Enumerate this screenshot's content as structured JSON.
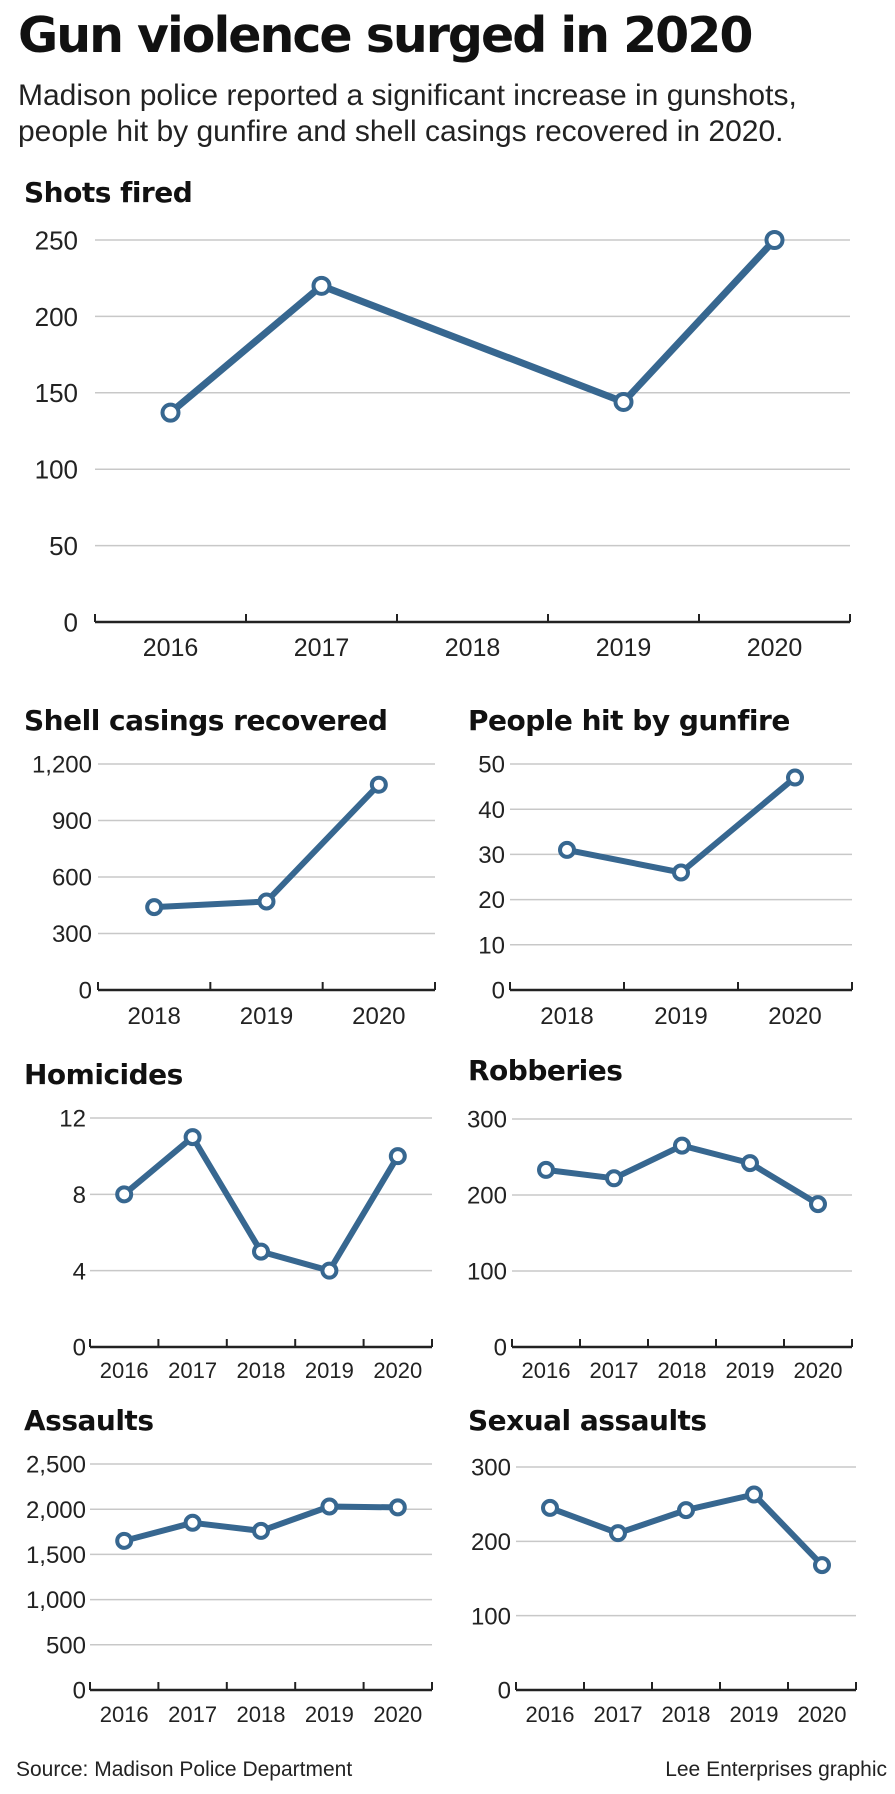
{
  "headline": "Gun violence surged in 2020",
  "subhead": "Madison police reported a significant increase in gunshots, people hit by gunfire and shell casings recovered in 2020.",
  "footer": {
    "source": "Source: Madison Police Department",
    "credit": "Lee Enterprises graphic"
  },
  "colors": {
    "line": "#376790",
    "grid": "#c8c8c8",
    "axis": "#222222"
  },
  "chart_data": [
    {
      "type": "line",
      "title": "Shots fired",
      "categories": [
        "2016",
        "2017",
        "2018",
        "2019",
        "2020"
      ],
      "values": [
        137,
        220,
        null,
        144,
        250
      ],
      "ylim": [
        0,
        250
      ],
      "yticks": [
        "0",
        "50",
        "100",
        "150",
        "200",
        "250"
      ],
      "ytick_values": [
        0,
        50,
        100,
        150,
        200,
        250
      ],
      "grid": true
    },
    {
      "type": "line",
      "title": "Shell casings recovered",
      "categories": [
        "2018",
        "2019",
        "2020"
      ],
      "values": [
        440,
        470,
        1090
      ],
      "ylim": [
        0,
        1200
      ],
      "yticks": [
        "0",
        "300",
        "600",
        "900",
        "1,200"
      ],
      "ytick_values": [
        0,
        300,
        600,
        900,
        1200
      ],
      "grid": true
    },
    {
      "type": "line",
      "title": "People hit by gunfire",
      "categories": [
        "2018",
        "2019",
        "2020"
      ],
      "values": [
        31,
        26,
        47
      ],
      "ylim": [
        0,
        50
      ],
      "yticks": [
        "0",
        "10",
        "20",
        "30",
        "40",
        "50"
      ],
      "ytick_values": [
        0,
        10,
        20,
        30,
        40,
        50
      ],
      "grid": true
    },
    {
      "type": "line",
      "title": "Homicides",
      "categories": [
        "2016",
        "2017",
        "2018",
        "2019",
        "2020"
      ],
      "values": [
        8,
        11,
        5,
        4,
        10
      ],
      "ylim": [
        0,
        12
      ],
      "yticks": [
        "0",
        "4",
        "8",
        "12"
      ],
      "ytick_values": [
        0,
        4,
        8,
        12
      ],
      "grid": true
    },
    {
      "type": "line",
      "title": "Robberies",
      "categories": [
        "2016",
        "2017",
        "2018",
        "2019",
        "2020"
      ],
      "values": [
        233,
        222,
        265,
        242,
        188
      ],
      "ylim": [
        0,
        300
      ],
      "yticks": [
        "0",
        "100",
        "200",
        "300"
      ],
      "ytick_values": [
        0,
        100,
        200,
        300
      ],
      "grid": true
    },
    {
      "type": "line",
      "title": "Assaults",
      "categories": [
        "2016",
        "2017",
        "2018",
        "2019",
        "2020"
      ],
      "values": [
        1650,
        1850,
        1760,
        2030,
        2020
      ],
      "ylim": [
        0,
        2500
      ],
      "yticks": [
        "0",
        "500",
        "1,000",
        "1,500",
        "2,000",
        "2,500"
      ],
      "ytick_values": [
        0,
        500,
        1000,
        1500,
        2000,
        2500
      ],
      "grid": true
    },
    {
      "type": "line",
      "title": "Sexual assaults",
      "categories": [
        "2016",
        "2017",
        "2018",
        "2019",
        "2020"
      ],
      "values": [
        245,
        211,
        242,
        263,
        168
      ],
      "ylim": [
        0,
        300
      ],
      "yticks": [
        "0",
        "100",
        "200",
        "300"
      ],
      "ytick_values": [
        0,
        100,
        200,
        300
      ],
      "grid": true
    }
  ]
}
